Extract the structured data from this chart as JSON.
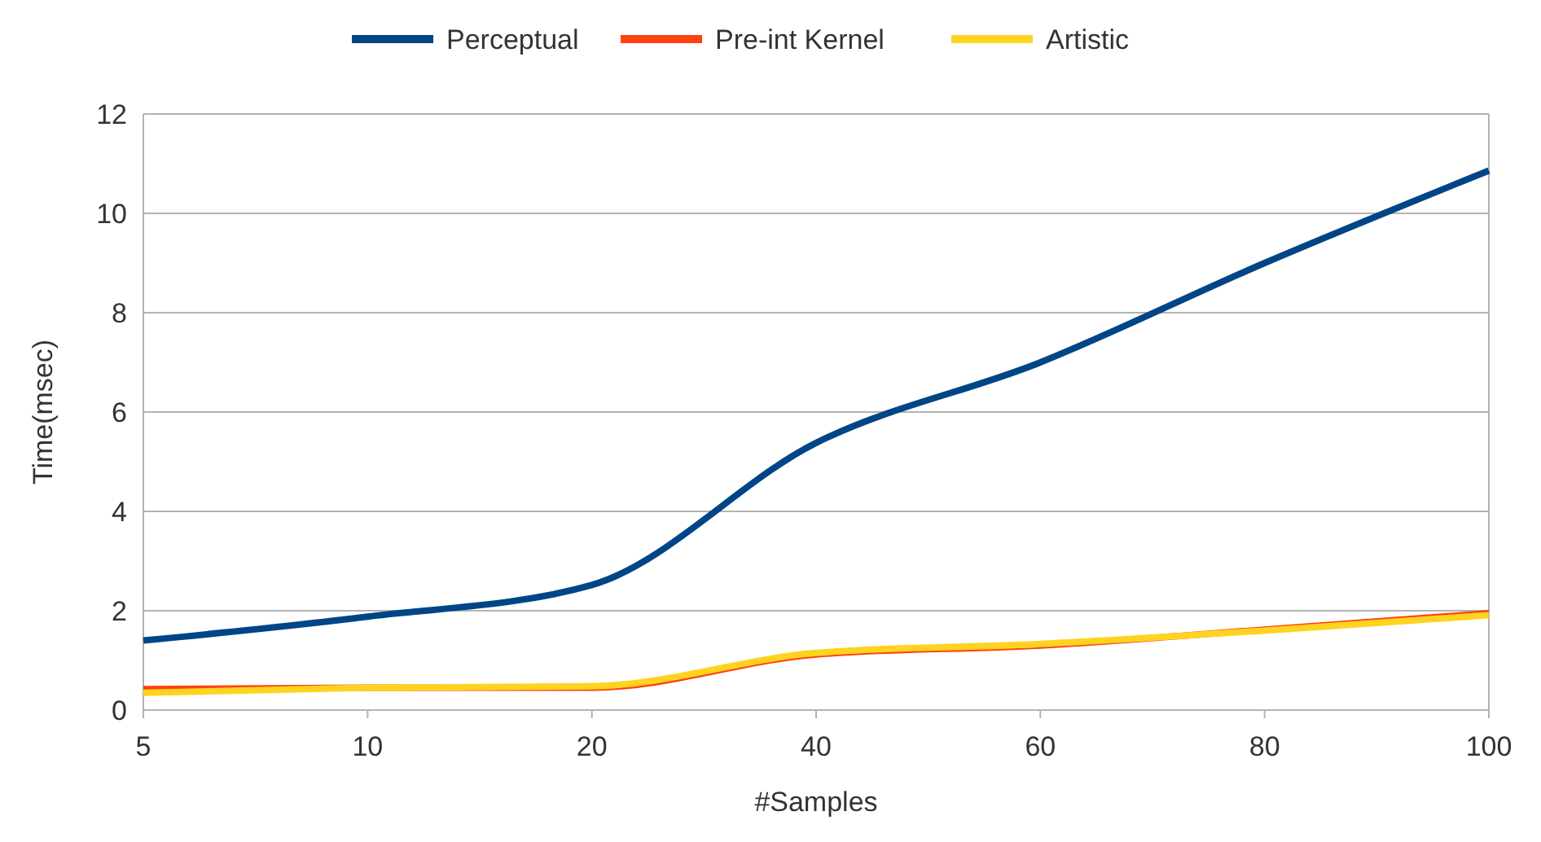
{
  "chart_data": {
    "type": "line",
    "xlabel": "#Samples",
    "ylabel": "Time(msec)",
    "categories": [
      "5",
      "10",
      "20",
      "40",
      "60",
      "80",
      "100"
    ],
    "series": [
      {
        "name": "Perceptual",
        "color": "#004586",
        "values": [
          1.4,
          1.88,
          2.52,
          5.38,
          7.0,
          9.0,
          10.86
        ]
      },
      {
        "name": "Pre-int Kernel",
        "color": "#ff420e",
        "values": [
          0.42,
          0.45,
          0.45,
          1.12,
          1.3,
          1.62,
          1.95
        ]
      },
      {
        "name": "Artistic",
        "color": "#ffd320",
        "values": [
          0.35,
          0.45,
          0.48,
          1.15,
          1.33,
          1.6,
          1.91
        ]
      }
    ],
    "ylim": [
      0,
      12
    ],
    "yticks": [
      0,
      2,
      4,
      6,
      8,
      10,
      12
    ],
    "grid": "y",
    "legend": "top",
    "marker": "none",
    "line_style": "solid"
  }
}
